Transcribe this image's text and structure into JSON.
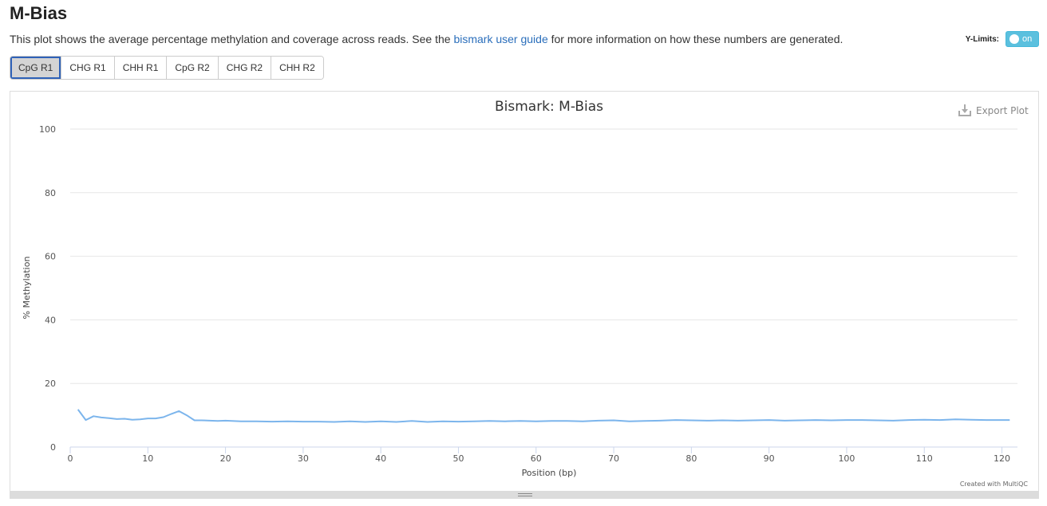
{
  "page": {
    "title": "M-Bias",
    "description_before": "This plot shows the average percentage methylation and coverage across reads. See the ",
    "description_link": "bismark user guide",
    "description_after": " for more information on how these numbers are generated."
  },
  "ylimits": {
    "label": "Y-Limits:",
    "toggle_text": "on"
  },
  "tabs": [
    {
      "label": "CpG R1",
      "active": true
    },
    {
      "label": "CHG R1",
      "active": false
    },
    {
      "label": "CHH R1",
      "active": false
    },
    {
      "label": "CpG R2",
      "active": false
    },
    {
      "label": "CHG R2",
      "active": false
    },
    {
      "label": "CHH R2",
      "active": false
    }
  ],
  "plot": {
    "export_label": "Export Plot",
    "credit": "Created with MultiQC"
  },
  "chart_data": {
    "type": "line",
    "title": "Bismark: M-Bias",
    "xlabel": "Position (bp)",
    "ylabel": "% Methylation",
    "xlim": [
      0,
      122
    ],
    "ylim": [
      0,
      100
    ],
    "xticks": [
      0,
      10,
      20,
      30,
      40,
      50,
      60,
      70,
      80,
      90,
      100,
      110,
      120
    ],
    "yticks": [
      0,
      20,
      40,
      60,
      80,
      100
    ],
    "grid": true,
    "line_color": "#7cb5ec",
    "series": [
      {
        "x": [
          1,
          2,
          3,
          4,
          5,
          6,
          7,
          8,
          9,
          10,
          11,
          12,
          13,
          14,
          15,
          16,
          17,
          18,
          19,
          20,
          22,
          24,
          26,
          28,
          30,
          32,
          34,
          36,
          38,
          40,
          42,
          44,
          46,
          48,
          50,
          52,
          54,
          56,
          58,
          60,
          62,
          64,
          66,
          68,
          70,
          72,
          74,
          76,
          78,
          80,
          82,
          84,
          86,
          88,
          90,
          92,
          94,
          96,
          98,
          100,
          102,
          104,
          106,
          108,
          110,
          112,
          114,
          116,
          118,
          121
        ],
        "y": [
          11.8,
          8.5,
          9.7,
          9.3,
          9.1,
          8.8,
          8.9,
          8.6,
          8.7,
          9.0,
          9.0,
          9.4,
          10.4,
          11.3,
          10.0,
          8.4,
          8.4,
          8.3,
          8.2,
          8.3,
          8.1,
          8.1,
          8.0,
          8.1,
          8.0,
          8.0,
          7.9,
          8.1,
          7.9,
          8.1,
          7.9,
          8.2,
          7.9,
          8.1,
          8.0,
          8.1,
          8.2,
          8.1,
          8.2,
          8.1,
          8.2,
          8.2,
          8.1,
          8.3,
          8.4,
          8.1,
          8.2,
          8.3,
          8.5,
          8.4,
          8.3,
          8.4,
          8.3,
          8.4,
          8.5,
          8.3,
          8.4,
          8.5,
          8.4,
          8.5,
          8.5,
          8.4,
          8.3,
          8.5,
          8.6,
          8.5,
          8.7,
          8.6,
          8.5,
          8.5
        ]
      }
    ]
  }
}
